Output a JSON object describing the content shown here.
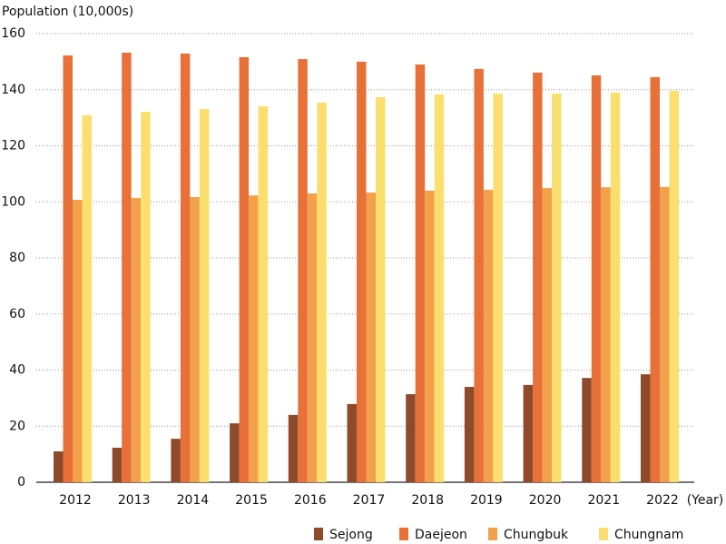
{
  "chart_data": {
    "type": "bar",
    "y_label": "Population (10,000s)",
    "x_label": "(Year)",
    "categories": [
      "2012",
      "2013",
      "2014",
      "2015",
      "2016",
      "2017",
      "2018",
      "2019",
      "2020",
      "2021",
      "2022"
    ],
    "series": [
      {
        "name": "Sejong",
        "color": "#8e4a2a",
        "values": [
          11.0,
          12.3,
          15.5,
          21.0,
          24.0,
          27.9,
          31.4,
          34.0,
          34.7,
          37.2,
          38.5
        ]
      },
      {
        "name": "Daejeon",
        "color": "#e8713a",
        "values": [
          152.2,
          153.2,
          152.9,
          151.6,
          150.9,
          150.0,
          149.0,
          147.4,
          146.1,
          145.1,
          144.5
        ]
      },
      {
        "name": "Chungbuk",
        "color": "#f2a14a",
        "values": [
          100.7,
          101.4,
          101.7,
          102.3,
          103.0,
          103.3,
          104.0,
          104.3,
          104.9,
          105.2,
          105.3
        ]
      },
      {
        "name": "Chungnam",
        "color": "#fbdf6e",
        "values": [
          130.9,
          132.1,
          133.1,
          134.1,
          135.4,
          137.3,
          138.3,
          138.6,
          138.6,
          139.0,
          139.6
        ]
      }
    ],
    "ylim": [
      0,
      160
    ],
    "yticks": [
      0,
      20,
      40,
      60,
      80,
      100,
      120,
      140,
      160
    ],
    "grid": true,
    "legend": "bottom"
  }
}
